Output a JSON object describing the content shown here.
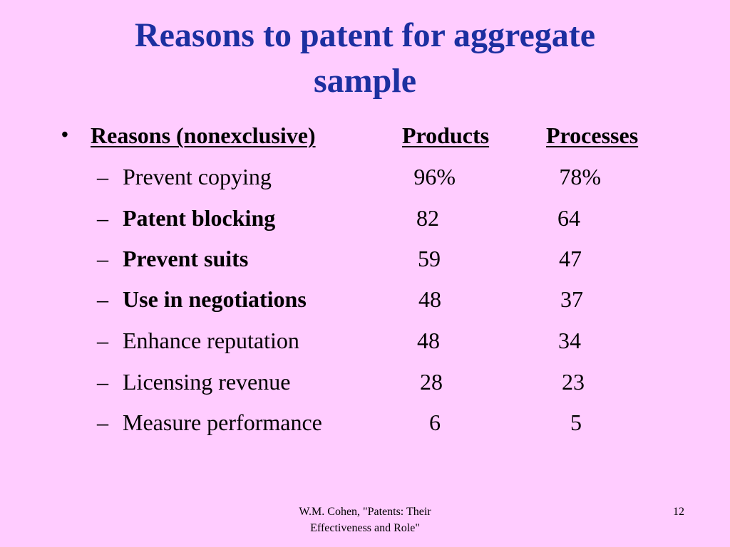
{
  "slide": {
    "title_line1": "Reasons to patent for aggregate",
    "title_line2": "sample",
    "bullet": "•",
    "headers": {
      "reasons": "Reasons (nonexclusive)",
      "products": "Products",
      "processes": "Processes"
    },
    "dash": "–",
    "rows": [
      {
        "label": "Prevent copying",
        "bold": false,
        "products": "96%",
        "processes": "78%"
      },
      {
        "label": "Patent blocking",
        "bold": true,
        "products": "82",
        "processes": "64"
      },
      {
        "label": "Prevent suits",
        "bold": true,
        "products": "59",
        "processes": "47"
      },
      {
        "label": "Use in negotiations",
        "bold": true,
        "products": "48",
        "processes": "37"
      },
      {
        "label": "Enhance reputation",
        "bold": false,
        "products": "48",
        "processes": "34"
      },
      {
        "label": "Licensing revenue",
        "bold": false,
        "products": "28",
        "processes": "23"
      },
      {
        "label": "Measure performance",
        "bold": false,
        "products": "6",
        "processes": "5"
      }
    ],
    "footer": {
      "source_line1": "W.M. Cohen, \"Patents: Their",
      "source_line2": "Effectiveness and Role\"",
      "page_number": "12"
    },
    "colors": {
      "background": "#ffccff",
      "title": "#1c2fa0",
      "text": "#000000"
    }
  }
}
